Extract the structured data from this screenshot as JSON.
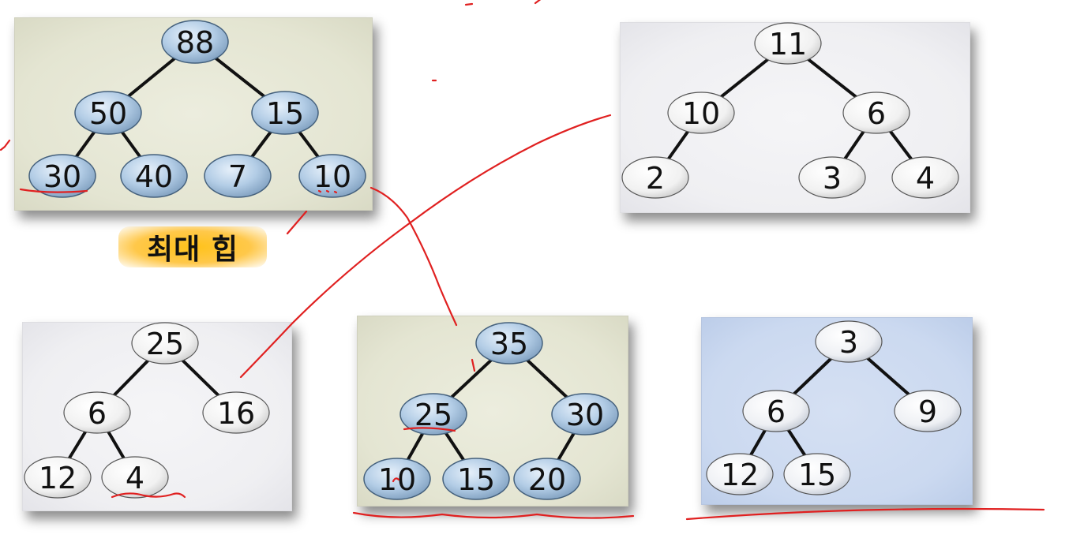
{
  "colors": {
    "node_blue_fill": "#a9c6e0",
    "node_white_fill": "#f2f2f2",
    "annotation_red": "#e02020",
    "label_highlight": "#ffc21a"
  },
  "label": {
    "text": "최대 힙"
  },
  "trees": [
    {
      "id": "tree-a",
      "style": "olive-blue",
      "nodes": [
        "88",
        "50",
        "15",
        "30",
        "40",
        "7",
        "10"
      ]
    },
    {
      "id": "tree-b",
      "style": "gray-white",
      "nodes": [
        "11",
        "10",
        "6",
        "2",
        "3",
        "4"
      ]
    },
    {
      "id": "tree-c",
      "style": "gray-white",
      "nodes": [
        "25",
        "6",
        "16",
        "12",
        "4"
      ]
    },
    {
      "id": "tree-d",
      "style": "olive-blue",
      "nodes": [
        "35",
        "25",
        "30",
        "10",
        "15",
        "20"
      ]
    },
    {
      "id": "tree-e",
      "style": "blue-white",
      "nodes": [
        "3",
        "6",
        "9",
        "12",
        "15"
      ]
    }
  ]
}
